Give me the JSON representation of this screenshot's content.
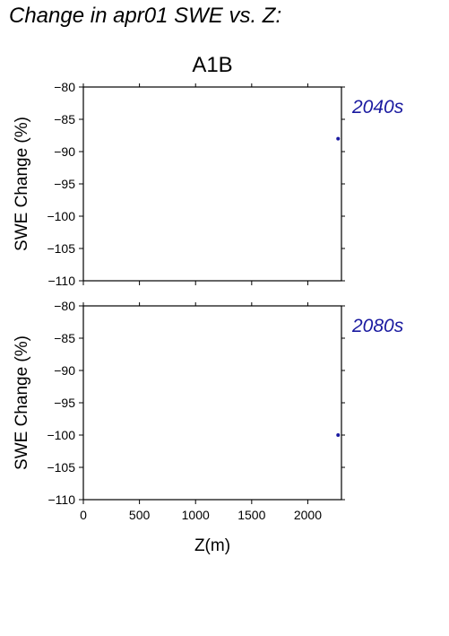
{
  "page_title": "Change in apr01 SWE vs. Z:",
  "chart_data": {
    "type": "scatter",
    "title": "A1B",
    "xlabel": "Z(m)",
    "ylabel": "SWE Change (%)",
    "xlim": [
      0,
      2300
    ],
    "ylim": [
      -110,
      -80
    ],
    "x_ticks": [
      "0",
      "500",
      "1000",
      "1500",
      "2000"
    ],
    "y_ticks": [
      "−80",
      "−85",
      "−90",
      "−95",
      "−100",
      "−105",
      "−110"
    ],
    "point_color": "#1a1aa0",
    "label_color": "#1a1aa0",
    "panels": [
      {
        "label": "2040s",
        "points": [
          {
            "x": 2270,
            "y": -88
          }
        ]
      },
      {
        "label": "2080s",
        "points": [
          {
            "x": 2270,
            "y": -100
          }
        ]
      }
    ]
  }
}
